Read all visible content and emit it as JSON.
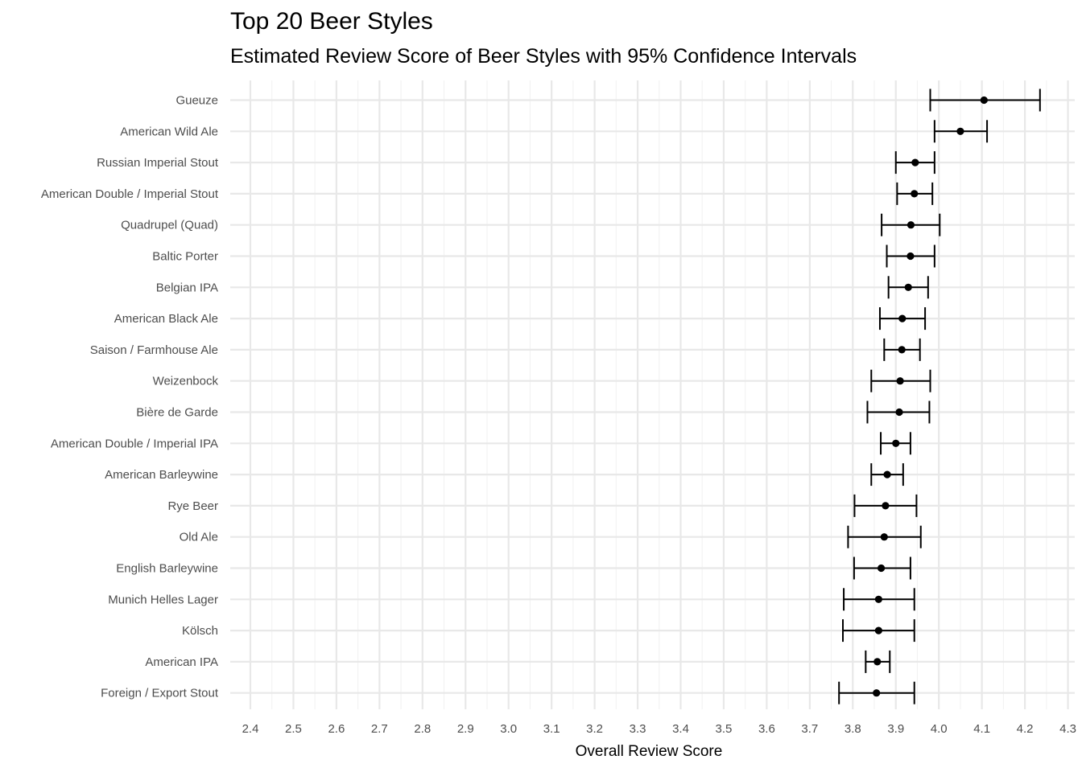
{
  "chart_data": {
    "type": "scatter",
    "title": "Top 20 Beer Styles",
    "subtitle": "Estimated Review Score of Beer Styles with 95% Confidence Intervals",
    "xlabel": "Overall Review Score",
    "ylabel": "",
    "xlim": [
      2.38,
      4.3
    ],
    "xticks": [
      2.4,
      2.5,
      2.6,
      2.7,
      2.8,
      2.9,
      3.0,
      3.1,
      3.2,
      3.3,
      3.4,
      3.5,
      3.6,
      3.7,
      3.8,
      3.9,
      4.0,
      4.1,
      4.2,
      4.3
    ],
    "grid": true,
    "series": [
      {
        "categories": [
          "Gueuze",
          "American Wild Ale",
          "Russian Imperial Stout",
          "American Double / Imperial Stout",
          "Quadrupel (Quad)",
          "Baltic Porter",
          "Belgian IPA",
          "American Black Ale",
          "Saison / Farmhouse Ale",
          "Weizenbock",
          "Bière de Garde",
          "American Double / Imperial IPA",
          "American Barleywine",
          "Rye Beer",
          "Old Ale",
          "English Barleywine",
          "Munich Helles Lager",
          "Kölsch",
          "American IPA",
          "Foreign / Export Stout"
        ],
        "estimate": [
          4.105,
          4.05,
          3.945,
          3.943,
          3.935,
          3.934,
          3.929,
          3.915,
          3.914,
          3.91,
          3.908,
          3.9,
          3.88,
          3.876,
          3.873,
          3.866,
          3.86,
          3.86,
          3.857,
          3.855
        ],
        "lower": [
          3.98,
          3.99,
          3.9,
          3.903,
          3.867,
          3.879,
          3.883,
          3.863,
          3.873,
          3.843,
          3.834,
          3.865,
          3.843,
          3.804,
          3.789,
          3.803,
          3.779,
          3.777,
          3.83,
          3.768
        ],
        "upper": [
          4.235,
          4.112,
          3.99,
          3.985,
          4.002,
          3.99,
          3.975,
          3.968,
          3.956,
          3.98,
          3.978,
          3.934,
          3.917,
          3.948,
          3.958,
          3.934,
          3.943,
          3.943,
          3.886,
          3.943
        ]
      }
    ]
  }
}
